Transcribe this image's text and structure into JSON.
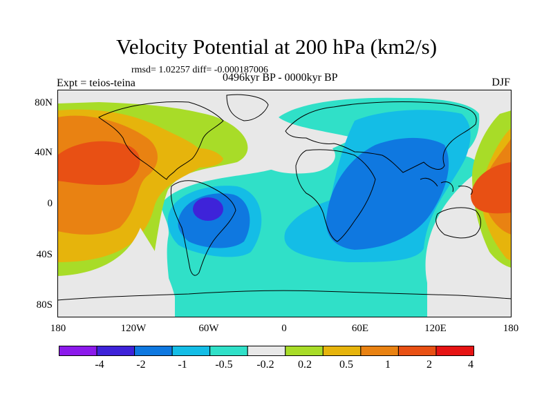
{
  "title": "Velocity Potential at 200 hPa (km2/s)",
  "stats": "rmsd= 1.02257 diff= -0.000187006",
  "expt": "Expt = teios-teina",
  "period": "0496kyr BP - 0000kyr BP",
  "season": "DJF",
  "lat_labels": [
    "80N",
    "40N",
    "0",
    "40S",
    "80S"
  ],
  "lon_labels": [
    "180",
    "120W",
    "60W",
    "0",
    "60E",
    "120E",
    "180"
  ],
  "colorbar": {
    "labels": [
      "-4",
      "-2",
      "-1",
      "-0.5",
      "-0.2",
      "0.2",
      "0.5",
      "1",
      "2",
      "4"
    ],
    "colors": [
      "#8c1aeb",
      "#3e23d9",
      "#0f78e0",
      "#14bde6",
      "#30e0c8",
      "#e8e8e8",
      "#a8dc28",
      "#e6b40c",
      "#e98212",
      "#e85014",
      "#e61414"
    ]
  },
  "map_colors": {
    "neutral": "#e8e8e8",
    "weak_neg": "#30e0c8",
    "mod_neg": "#14bde6",
    "neg": "#0f78e0",
    "strong_neg": "#3e23d9",
    "weak_pos": "#a8dc28",
    "mod_pos": "#e6b40c",
    "pos": "#e98212",
    "strong_pos": "#e85014"
  }
}
